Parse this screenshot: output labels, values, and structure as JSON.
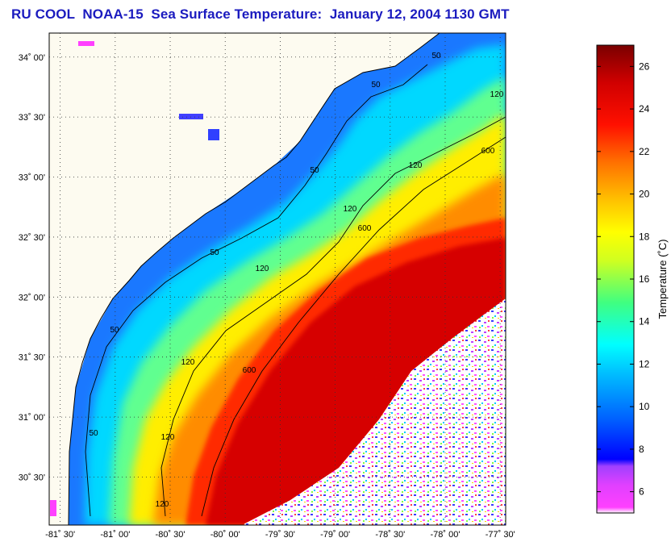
{
  "title": "RU COOL  NOAA-15  Sea Surface Temperature:  January 12, 2004 1130 GMT",
  "map": {
    "lat_ticks": [
      {
        "lat": 34.0,
        "label": "34˚ 00'"
      },
      {
        "lat": 33.5,
        "label": "33˚ 30'"
      },
      {
        "lat": 33.0,
        "label": "33˚ 00'"
      },
      {
        "lat": 32.5,
        "label": "32˚ 30'"
      },
      {
        "lat": 32.0,
        "label": "32˚ 00'"
      },
      {
        "lat": 31.5,
        "label": "31˚ 30'"
      },
      {
        "lat": 31.0,
        "label": "31˚ 00'"
      },
      {
        "lat": 30.5,
        "label": "30˚ 30'"
      }
    ],
    "lon_ticks": [
      {
        "lon": -81.5,
        "label": "-81˚ 30'"
      },
      {
        "lon": -81.0,
        "label": "-81˚ 00'"
      },
      {
        "lon": -80.5,
        "label": "-80˚ 30'"
      },
      {
        "lon": -80.0,
        "label": "-80˚ 00'"
      },
      {
        "lon": -79.5,
        "label": "-79˚ 30'"
      },
      {
        "lon": -79.0,
        "label": "-79˚ 00'"
      },
      {
        "lon": -78.5,
        "label": "-78˚ 30'"
      },
      {
        "lon": -78.0,
        "label": "-78˚ 00'"
      },
      {
        "lon": -77.5,
        "label": "-77˚ 30'"
      }
    ],
    "lat_range": [
      30.1,
      34.2
    ],
    "lon_range": [
      -81.6,
      -77.45
    ],
    "grid": "dotted",
    "contour_labels": [
      "50",
      "50",
      "50",
      "50",
      "50",
      "50",
      "120",
      "120",
      "120",
      "120",
      "120",
      "120",
      "120",
      "600",
      "600",
      "600"
    ]
  },
  "colorbar": {
    "title": "Temperature (˚C)",
    "min": 5,
    "max": 27,
    "ticks": [
      "6",
      "8",
      "10",
      "12",
      "14",
      "16",
      "18",
      "20",
      "22",
      "24",
      "26"
    ],
    "palette": [
      "#ffffff",
      "#ff40ff",
      "#a040ff",
      "#0000ff",
      "#0080ff",
      "#00ffff",
      "#00ff80",
      "#ffff00",
      "#ff8000",
      "#ff0000",
      "#800000"
    ]
  }
}
